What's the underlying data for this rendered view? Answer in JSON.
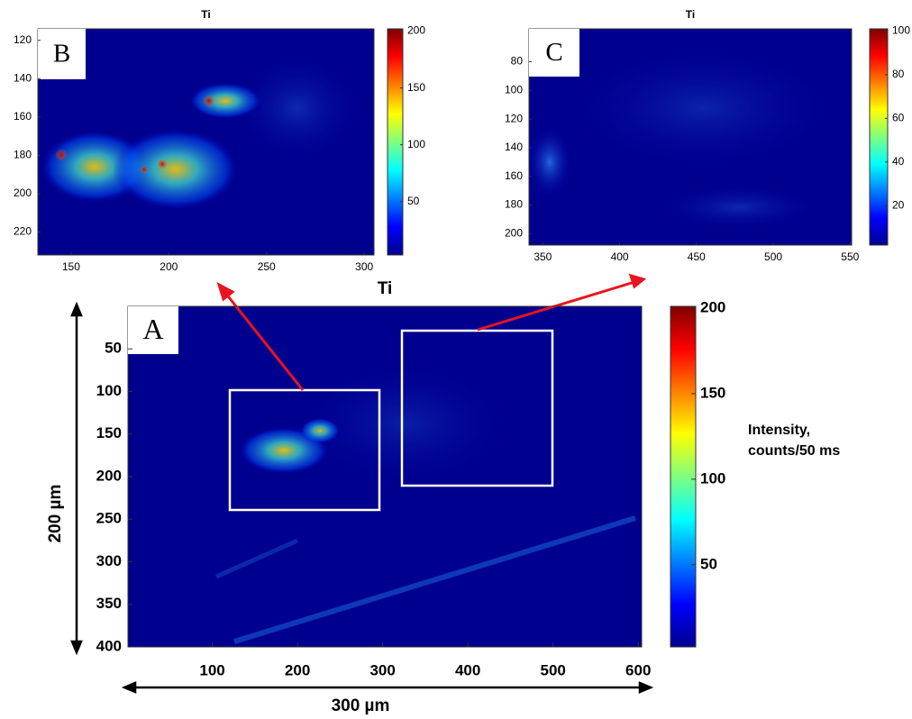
{
  "chart_data": [
    {
      "type": "heatmap",
      "title": "Ti",
      "panel_label": "A",
      "colormap": "jet",
      "xlim": [
        1,
        604
      ],
      "xticks": [
        100,
        200,
        300,
        400,
        500,
        600
      ],
      "ylim": [
        0,
        400
      ],
      "yticks": [
        50,
        100,
        150,
        200,
        250,
        300,
        350,
        400
      ],
      "yreverse": true,
      "colorbar": {
        "clim": [
          2,
          201
        ],
        "ticks": [
          50,
          100,
          150,
          200
        ],
        "label_lines": [
          "Intensity,",
          "counts/50 ms"
        ]
      },
      "y_scale_label": "200 µm",
      "x_scale_label": "300 µm"
    },
    {
      "type": "heatmap",
      "title": "Ti",
      "panel_label": "B",
      "colormap": "jet",
      "xlim": [
        133,
        305
      ],
      "xticks": [
        150,
        200,
        250,
        300
      ],
      "ylim": [
        114,
        232
      ],
      "yticks": [
        120,
        140,
        160,
        180,
        200,
        220
      ],
      "yreverse": true,
      "colorbar": {
        "clim": [
          3,
          202
        ],
        "ticks": [
          50,
          100,
          150,
          200
        ]
      }
    },
    {
      "type": "heatmap",
      "title": "Ti",
      "panel_label": "C",
      "colormap": "jet",
      "xlim": [
        341,
        551
      ],
      "xticks": [
        350,
        400,
        450,
        500,
        550
      ],
      "ylim": [
        57,
        208
      ],
      "yticks": [
        80,
        100,
        120,
        140,
        160,
        180,
        200
      ],
      "yreverse": true,
      "colorbar": {
        "clim": [
          2,
          101
        ],
        "ticks": [
          20,
          40,
          60,
          80,
          100
        ]
      }
    }
  ]
}
